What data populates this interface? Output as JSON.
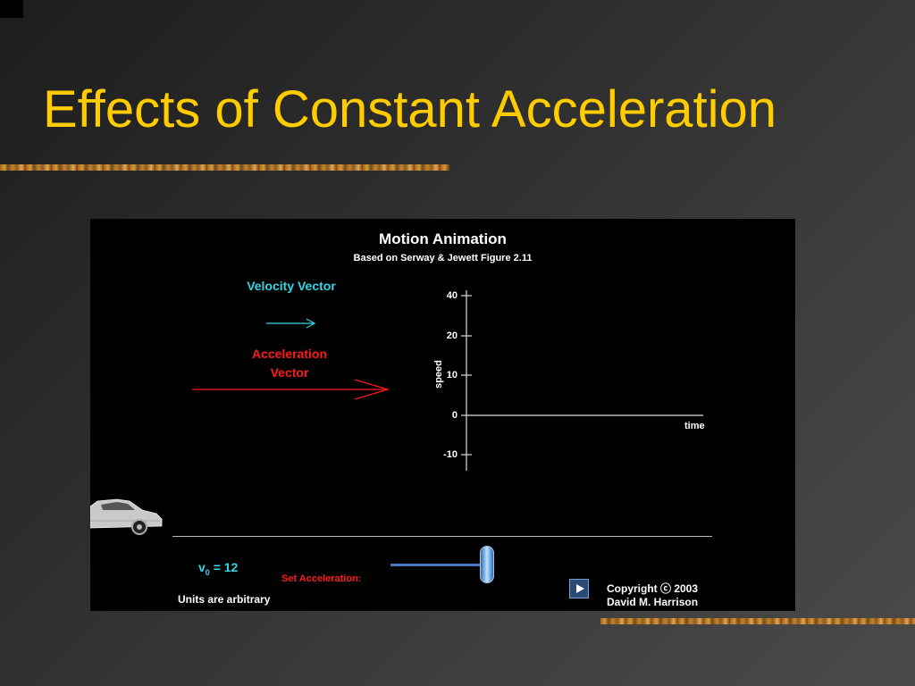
{
  "slide": {
    "title": "Effects of Constant Acceleration"
  },
  "animation": {
    "title": "Motion Animation",
    "subtitle": "Based on Serway & Jewett Figure 2.11",
    "velocity_label": "Velocity Vector",
    "acceleration_label": "Acceleration Vector",
    "graph": {
      "y_axis_label": "speed",
      "x_axis_label": "time",
      "y_ticks": [
        "40",
        "20",
        "10",
        "0",
        "-10"
      ]
    },
    "v0_prefix": "v",
    "v0_subscript": "0",
    "v0_suffix": " = 12",
    "set_acceleration_label": "Set Acceleration:",
    "units_note": "Units are arbitrary",
    "copyright_line1": "Copyright ⓒ 2003",
    "copyright_line2": "David M. Harrison",
    "colors": {
      "title": "#ffcc00",
      "velocity": "#33d6e6",
      "acceleration": "#ff1a1a"
    }
  }
}
